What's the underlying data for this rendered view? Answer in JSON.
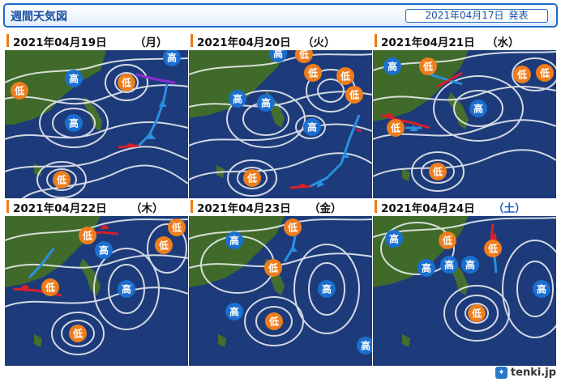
{
  "header": {
    "title": "週間天気図",
    "issued_date": "2021年04月17日",
    "issued_suffix": "発表"
  },
  "symbols": {
    "high": "高",
    "low": "低"
  },
  "colors": {
    "accent": "#1a6bc8",
    "date_bar": "#f07b16",
    "sea": "#1d3b7a",
    "land": "#3f6a2a",
    "high": "#1b6fd0",
    "low": "#ee7d1d",
    "cold_front": "#2b8fe0",
    "warm_front": "#d8202a",
    "occluded": "#8a2ed4"
  },
  "panels": [
    {
      "date": "2021年04月19日",
      "dow": "（月）",
      "systems": [
        {
          "type": "low"
        },
        {
          "type": "high"
        },
        {
          "type": "low"
        },
        {
          "type": "high"
        },
        {
          "type": "high"
        },
        {
          "type": "low"
        }
      ]
    },
    {
      "date": "2021年04月20日",
      "dow": "（火）",
      "systems": [
        {
          "type": "high"
        },
        {
          "type": "low"
        },
        {
          "type": "low"
        },
        {
          "type": "low"
        },
        {
          "type": "high"
        },
        {
          "type": "high"
        },
        {
          "type": "high"
        },
        {
          "type": "low"
        },
        {
          "type": "low"
        }
      ]
    },
    {
      "date": "2021年04月21日",
      "dow": "（水）",
      "systems": [
        {
          "type": "high"
        },
        {
          "type": "low"
        },
        {
          "type": "low"
        },
        {
          "type": "low"
        },
        {
          "type": "low"
        },
        {
          "type": "high"
        },
        {
          "type": "low"
        }
      ]
    },
    {
      "date": "2021年04月22日",
      "dow": "（木）",
      "systems": [
        {
          "type": "low"
        },
        {
          "type": "low"
        },
        {
          "type": "low"
        },
        {
          "type": "high"
        },
        {
          "type": "low"
        },
        {
          "type": "high"
        },
        {
          "type": "low"
        }
      ]
    },
    {
      "date": "2021年04月23日",
      "dow": "（金）",
      "systems": [
        {
          "type": "high"
        },
        {
          "type": "low"
        },
        {
          "type": "low"
        },
        {
          "type": "high"
        },
        {
          "type": "high"
        },
        {
          "type": "high"
        },
        {
          "type": "low"
        }
      ]
    },
    {
      "date": "2021年04月24日",
      "dow": "（土）",
      "systems": [
        {
          "type": "high"
        },
        {
          "type": "low"
        },
        {
          "type": "low"
        },
        {
          "type": "high"
        },
        {
          "type": "high"
        },
        {
          "type": "high"
        },
        {
          "type": "high"
        },
        {
          "type": "low"
        }
      ]
    }
  ],
  "footer": {
    "brand": "tenki.jp"
  }
}
